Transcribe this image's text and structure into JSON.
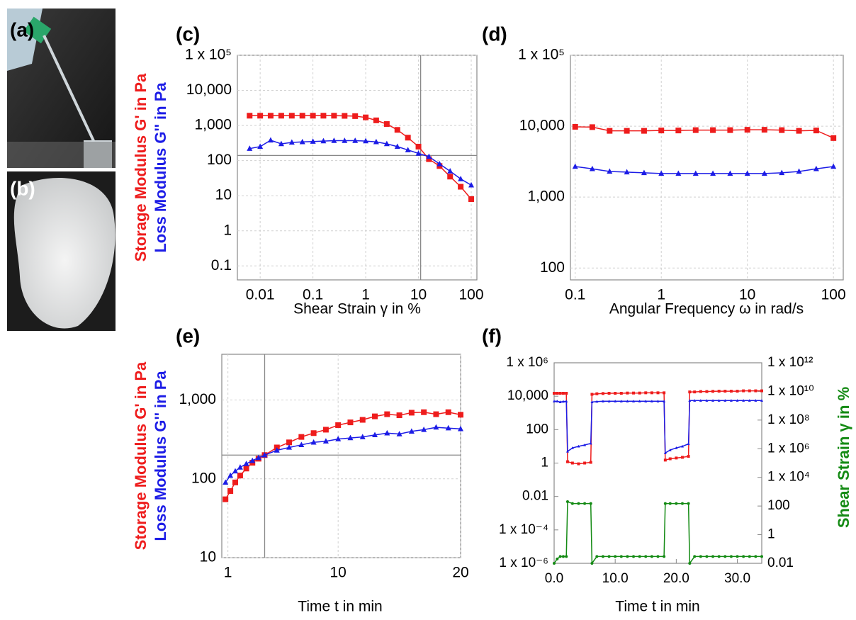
{
  "images": [
    {
      "label": "(a)"
    },
    {
      "label": "(b)"
    }
  ],
  "chart_data": [
    {
      "type": "line",
      "panel_label": "(c)",
      "x_label": "Shear Strain γ in %",
      "log_x": true,
      "log_y": true,
      "grid": true,
      "x": [
        0.00631,
        0.01,
        0.0158,
        0.0251,
        0.0398,
        0.0631,
        0.1,
        0.158,
        0.251,
        0.398,
        0.631,
        1,
        1.58,
        2.51,
        3.98,
        6.31,
        10,
        15.8,
        25.1,
        39.8,
        63.1,
        100
      ],
      "series": [
        {
          "name": "Storage Modulus G' in Pa",
          "color": "#ee1c1c",
          "marker": "square",
          "values": [
            1900,
            1900,
            1900,
            1900,
            1900,
            1900,
            1900,
            1900,
            1900,
            1880,
            1850,
            1700,
            1400,
            1100,
            750,
            450,
            250,
            110,
            70,
            35,
            18,
            8
          ]
        },
        {
          "name": "Loss Modulus G'' in Pa",
          "color": "#1c1ce6",
          "marker": "triangle",
          "values": [
            220,
            250,
            380,
            300,
            330,
            340,
            350,
            360,
            370,
            370,
            370,
            360,
            340,
            300,
            250,
            200,
            160,
            130,
            80,
            50,
            30,
            20
          ]
        }
      ],
      "xlim": [
        0.0037,
        128
      ],
      "xticks": [
        0.01,
        0.1,
        1,
        10,
        100
      ],
      "ylim": [
        0.04,
        100000
      ],
      "yticks": [
        0.1,
        1,
        10,
        100,
        {
          "value": 1000,
          "label": "1,000"
        },
        {
          "value": 10000,
          "label": "10,000"
        },
        {
          "value": 100000,
          "label": "1 x 10⁵"
        }
      ],
      "crosshair": {
        "x": 11,
        "y": 140
      }
    },
    {
      "type": "line",
      "panel_label": "(d)",
      "x_label": "Angular Frequency ω in rad/s",
      "log_x": true,
      "log_y": true,
      "grid": true,
      "x": [
        0.1,
        0.158,
        0.251,
        0.398,
        0.631,
        1,
        1.58,
        2.51,
        3.98,
        6.31,
        10,
        15.8,
        25.1,
        39.8,
        63.1,
        100
      ],
      "series": [
        {
          "color": "#ee1c1c",
          "marker": "square",
          "values": [
            9800,
            9700,
            8600,
            8600,
            8600,
            8700,
            8700,
            8800,
            8800,
            8800,
            8900,
            8900,
            8800,
            8600,
            8700,
            6800
          ]
        },
        {
          "color": "#1c1ce6",
          "marker": "triangle",
          "values": [
            2700,
            2500,
            2300,
            2250,
            2200,
            2150,
            2150,
            2150,
            2150,
            2150,
            2150,
            2150,
            2200,
            2300,
            2500,
            2700
          ]
        }
      ],
      "xlim": [
        0.088,
        130
      ],
      "xticks": [
        0.1,
        1,
        10,
        100
      ],
      "ylim": [
        68,
        100000
      ],
      "yticks": [
        100,
        {
          "value": 1000,
          "label": "1,000"
        },
        {
          "value": 10000,
          "label": "10,000"
        },
        {
          "value": 100000,
          "label": "1 x 10⁵"
        }
      ]
    },
    {
      "type": "line",
      "panel_label": "(e)",
      "x_label": "Time t in min",
      "log_x": false,
      "log_y": true,
      "grid": true,
      "x": [
        0.8,
        1.2,
        1.6,
        2,
        2.5,
        3,
        3.5,
        4,
        5,
        6,
        7,
        8,
        9,
        10,
        11,
        12,
        13,
        14,
        15,
        16,
        17,
        18,
        19,
        20
      ],
      "series": [
        {
          "name": "Storage Modulus G' in Pa",
          "color": "#ee1c1c",
          "marker": "square",
          "values": [
            55,
            70,
            90,
            110,
            135,
            160,
            180,
            200,
            250,
            290,
            340,
            380,
            420,
            480,
            520,
            560,
            620,
            660,
            640,
            690,
            700,
            660,
            700,
            650
          ]
        },
        {
          "name": "Loss Modulus G'' in Pa",
          "color": "#1c1ce6",
          "marker": "triangle",
          "values": [
            90,
            110,
            125,
            140,
            155,
            170,
            185,
            200,
            230,
            250,
            270,
            290,
            300,
            320,
            330,
            340,
            360,
            380,
            370,
            400,
            420,
            450,
            440,
            430
          ]
        }
      ],
      "xlim": [
        0.5,
        20
      ],
      "xticks": [
        1,
        10,
        20
      ],
      "ylim": [
        10,
        3800
      ],
      "yticks": [
        10,
        100,
        {
          "value": 1000,
          "label": "1,000"
        }
      ],
      "crosshair": {
        "x": 4,
        "y": 200
      }
    },
    {
      "type": "line",
      "panel_label": "(f)",
      "x_label": "Time t in min",
      "log_x": false,
      "log_y": true,
      "log_y2": true,
      "grid": false,
      "y2_label": "Shear Strain γ in %",
      "x": [
        0,
        0.5,
        1,
        1.5,
        2,
        2.2,
        3,
        4,
        5,
        6,
        6.2,
        7,
        8,
        9,
        10,
        11,
        12,
        13,
        14,
        15,
        16,
        17,
        18,
        18.2,
        19,
        20,
        21,
        22,
        22.2,
        23,
        24,
        25,
        26,
        27,
        28,
        29,
        30,
        31,
        32,
        33,
        34
      ],
      "series": [
        {
          "color": "#ee1c1c",
          "marker": "square",
          "values": [
            15000,
            15000,
            15000,
            15000,
            15000,
            1.2,
            1.0,
            0.9,
            1.0,
            1.1,
            13000,
            14000,
            14500,
            15000,
            15000,
            15000,
            15500,
            15500,
            15500,
            16000,
            16000,
            16000,
            16000,
            1.5,
            1.8,
            2,
            2.2,
            2.5,
            18000,
            18000,
            19000,
            19000,
            19500,
            20000,
            20000,
            20000,
            20000,
            21000,
            21000,
            21000,
            21000
          ]
        },
        {
          "color": "#1c1ce6",
          "marker": "triangle",
          "values": [
            5000,
            5000,
            4500,
            4800,
            5000,
            5,
            8,
            10,
            12,
            15,
            4500,
            4800,
            5000,
            5000,
            5000,
            5000,
            5000,
            5000,
            5000,
            5000,
            5000,
            5000,
            5000,
            4,
            6,
            8,
            10,
            14,
            5500,
            5500,
            5500,
            5500,
            5500,
            5500,
            5500,
            5500,
            5500,
            5500,
            5500,
            5500,
            5500
          ]
        },
        {
          "color": "#138a13",
          "marker": "circle",
          "axis": "y2",
          "values": [
            0.01,
            0.02,
            0.03,
            0.03,
            0.03,
            200,
            150,
            150,
            150,
            150,
            0.01,
            0.03,
            0.03,
            0.03,
            0.03,
            0.03,
            0.03,
            0.03,
            0.03,
            0.03,
            0.03,
            0.03,
            0.03,
            150,
            150,
            150,
            150,
            150,
            0.01,
            0.03,
            0.03,
            0.03,
            0.03,
            0.03,
            0.03,
            0.03,
            0.03,
            0.03,
            0.03,
            0.03,
            0.03
          ]
        }
      ],
      "xlim": [
        0,
        34
      ],
      "xticks": [
        {
          "value": 0,
          "label": "0.0"
        },
        {
          "value": 10,
          "label": "10.0"
        },
        {
          "value": 20,
          "label": "20.0"
        },
        {
          "value": 30,
          "label": "30.0"
        }
      ],
      "ylim": [
        1e-06,
        1000000
      ],
      "yticks": [
        {
          "value": 1e-06,
          "label": "1 x 10⁻⁶"
        },
        {
          "value": 0.0001,
          "label": "1 x 10⁻⁴"
        },
        0.01,
        1,
        100,
        {
          "value": 10000,
          "label": "10,000"
        },
        {
          "value": 1000000,
          "label": "1 x 10⁶"
        }
      ],
      "y2lim": [
        0.01,
        1000000000000
      ],
      "y2ticks": [
        0.01,
        1,
        100,
        {
          "value": 10000,
          "label": "1 x 10⁴"
        },
        {
          "value": 1000000,
          "label": "1 x 10⁶"
        },
        {
          "value": 100000000,
          "label": "1 x 10⁸"
        },
        {
          "value": 10000000000,
          "label": "1 x 10¹⁰"
        },
        {
          "value": 1000000000000,
          "label": "1 x 10¹²"
        }
      ]
    }
  ]
}
